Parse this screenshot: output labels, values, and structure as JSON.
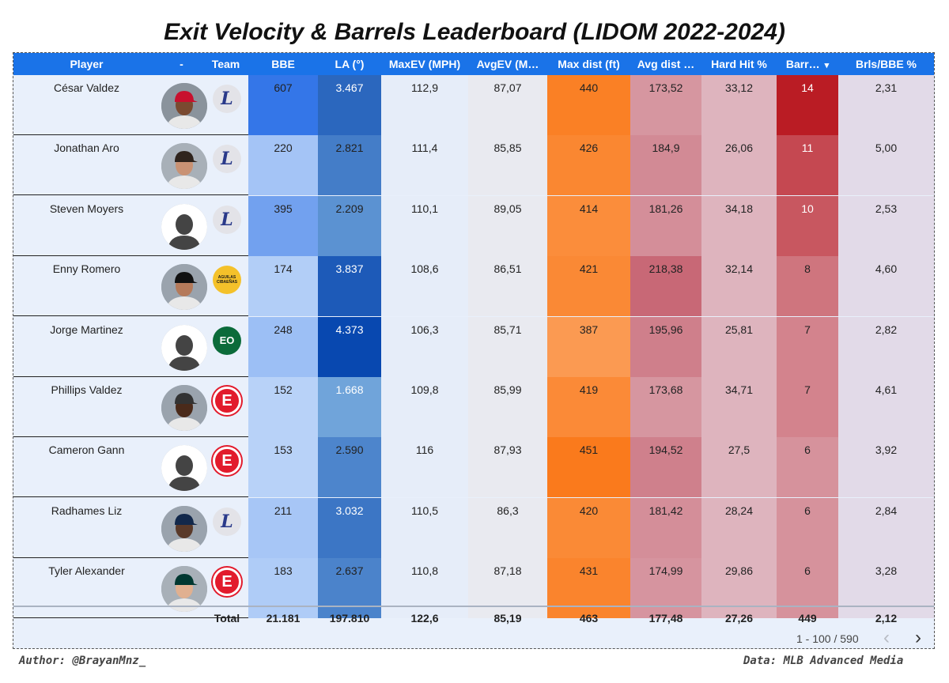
{
  "title": "Exit Velocity & Barrels Leaderboard (LIDOM 2022-2024)",
  "columns": [
    "Player",
    "-",
    "Team",
    "BBE",
    "LA (°)",
    "MaxEV (MPH)",
    "AvgEV (M…",
    "Max dist (ft)",
    "Avg dist …",
    "Hard Hit %",
    "Barr…",
    "Brls/BBE %"
  ],
  "sort_indicator": "▾",
  "rows": [
    {
      "player": "César Valdez",
      "team": "L",
      "bbe": "607",
      "la": "3.467",
      "maxev": "112,9",
      "avgev": "87,07",
      "maxdist": "440",
      "avgdist": "173,52",
      "hardhit": "33,12",
      "barrels": "14",
      "brls": "2,31"
    },
    {
      "player": "Jonathan Aro",
      "team": "L",
      "bbe": "220",
      "la": "2.821",
      "maxev": "111,4",
      "avgev": "85,85",
      "maxdist": "426",
      "avgdist": "184,9",
      "hardhit": "26,06",
      "barrels": "11",
      "brls": "5,00"
    },
    {
      "player": "Steven Moyers",
      "team": "L",
      "bbe": "395",
      "la": "2.209",
      "maxev": "110,1",
      "avgev": "89,05",
      "maxdist": "414",
      "avgdist": "181,26",
      "hardhit": "34,18",
      "barrels": "10",
      "brls": "2,53"
    },
    {
      "player": "Enny Romero",
      "team": "AGUILAS CIBAEÑAS",
      "bbe": "174",
      "la": "3.837",
      "maxev": "108,6",
      "avgev": "86,51",
      "maxdist": "421",
      "avgdist": "218,38",
      "hardhit": "32,14",
      "barrels": "8",
      "brls": "4,60"
    },
    {
      "player": "Jorge Martinez",
      "team": "EO",
      "bbe": "248",
      "la": "4.373",
      "maxev": "106,3",
      "avgev": "85,71",
      "maxdist": "387",
      "avgdist": "195,96",
      "hardhit": "25,81",
      "barrels": "7",
      "brls": "2,82"
    },
    {
      "player": "Phillips Valdez",
      "team": "E",
      "bbe": "152",
      "la": "1.668",
      "maxev": "109,8",
      "avgev": "85,99",
      "maxdist": "419",
      "avgdist": "173,68",
      "hardhit": "34,71",
      "barrels": "7",
      "brls": "4,61"
    },
    {
      "player": "Cameron Gann",
      "team": "E",
      "bbe": "153",
      "la": "2.590",
      "maxev": "116",
      "avgev": "87,93",
      "maxdist": "451",
      "avgdist": "194,52",
      "hardhit": "27,5",
      "barrels": "6",
      "brls": "3,92"
    },
    {
      "player": "Radhames Liz",
      "team": "L",
      "bbe": "211",
      "la": "3.032",
      "maxev": "110,5",
      "avgev": "86,3",
      "maxdist": "420",
      "avgdist": "181,42",
      "hardhit": "28,24",
      "barrels": "6",
      "brls": "2,84"
    },
    {
      "player": "Tyler Alexander",
      "team": "E",
      "bbe": "183",
      "la": "2.637",
      "maxev": "110,8",
      "avgev": "87,18",
      "maxdist": "431",
      "avgdist": "174,99",
      "hardhit": "29,86",
      "barrels": "6",
      "brls": "3,28"
    }
  ],
  "totals": {
    "label": "Total",
    "bbe": "21.181",
    "la": "197.810",
    "maxev": "122,6",
    "avgev": "85,19",
    "maxdist": "463",
    "avgdist": "177,48",
    "hardhit": "27,26",
    "barrels": "449",
    "brls": "2,12"
  },
  "pagination": {
    "text": "1 - 100 / 590",
    "prev": "‹",
    "next": "›"
  },
  "footer": {
    "author": "Author: @BrayanMnz_",
    "data": "Data: MLB Advanced Media"
  },
  "colors": {
    "header": "#1a73e8",
    "board": "#e9f0fb"
  }
}
